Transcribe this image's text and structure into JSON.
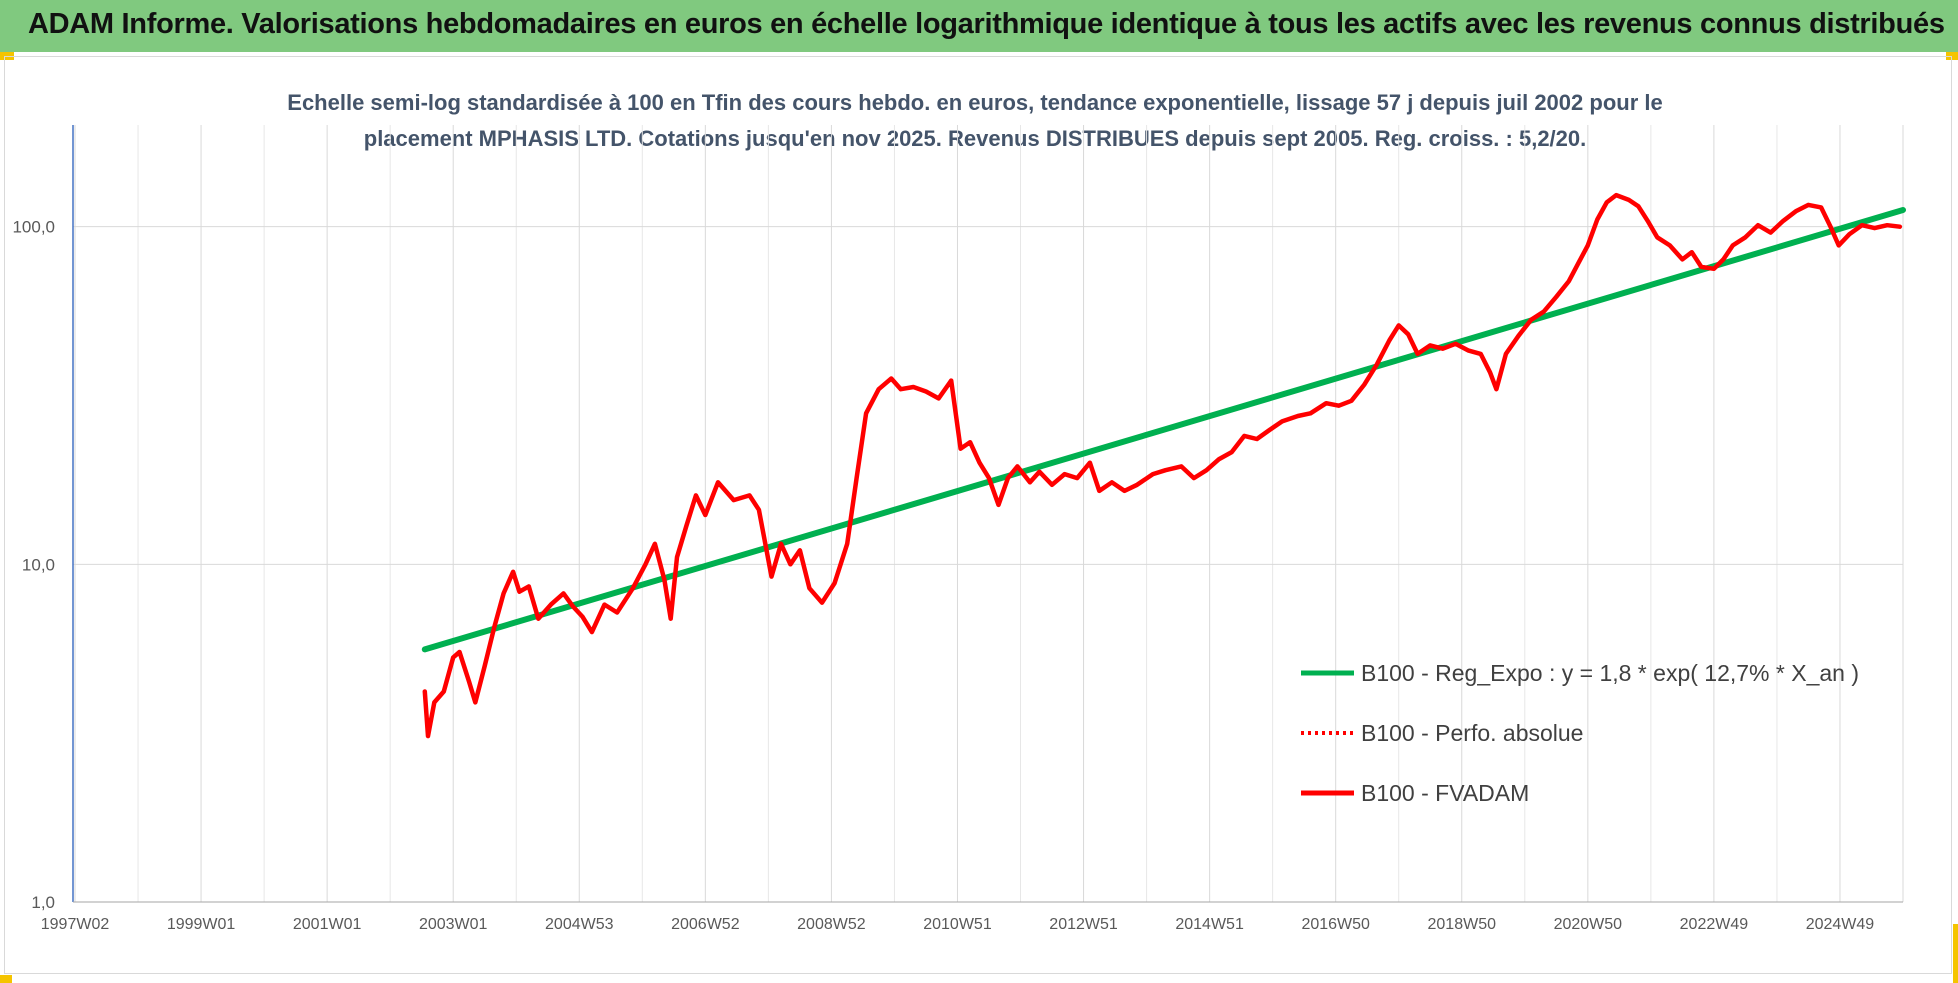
{
  "banner": {
    "title": "ADAM Informe. Valorisations hebdomadaires en euros en échelle logarithmique identique à tous les actifs avec les revenus connus distribués",
    "background": "#80c97f"
  },
  "chart_data": {
    "type": "line",
    "title_lines": [
      "Echelle semi-log standardisée à 100 en Tfin des cours hebdo. en euros, tendance exponentielle, lissage 57 j depuis juil 2002 pour le",
      "placement MPHASIS LTD. Cotations jusqu'en nov 2025. Revenus DISTRIBUES depuis sept 2005. Reg. croiss. : 5,2/20."
    ],
    "y_scale": "log",
    "ylim": [
      1,
      200
    ],
    "y_ticks": [
      {
        "value": 1,
        "label": "1,0"
      },
      {
        "value": 10,
        "label": "10,0"
      },
      {
        "value": 100,
        "label": "100,0"
      }
    ],
    "x_range": [
      1997.0,
      2026.0
    ],
    "x_ticks": [
      {
        "value": 1997.0,
        "label": "1997W02"
      },
      {
        "value": 1999.0,
        "label": "1999W01"
      },
      {
        "value": 2001.0,
        "label": "2001W01"
      },
      {
        "value": 2003.0,
        "label": "2003W01"
      },
      {
        "value": 2005.0,
        "label": "2004W53"
      },
      {
        "value": 2007.0,
        "label": "2006W52"
      },
      {
        "value": 2009.0,
        "label": "2008W52"
      },
      {
        "value": 2011.0,
        "label": "2010W51"
      },
      {
        "value": 2013.0,
        "label": "2012W51"
      },
      {
        "value": 2015.0,
        "label": "2014W51"
      },
      {
        "value": 2017.0,
        "label": "2016W50"
      },
      {
        "value": 2019.0,
        "label": "2018W50"
      },
      {
        "value": 2021.0,
        "label": "2020W50"
      },
      {
        "value": 2023.0,
        "label": "2022W49"
      },
      {
        "value": 2025.0,
        "label": "2024W49"
      }
    ],
    "grid": "vertical-and-horizontal",
    "legend_position": "bottom-right",
    "series": [
      {
        "name": "B100 - Reg_Expo : y = 1,8 * exp( 12,7% * X_an )",
        "color": "#00b050",
        "style": "solid",
        "points": [
          [
            2002.55,
            5.6
          ],
          [
            2026.0,
            112
          ]
        ]
      },
      {
        "name": "B100 - Perfo. absolue",
        "color": "#ff0000",
        "style": "dotted",
        "points": []
      },
      {
        "name": "B100 - FVADAM",
        "color": "#ff0000",
        "style": "solid",
        "points": [
          [
            2002.55,
            4.2
          ],
          [
            2002.6,
            3.1
          ],
          [
            2002.7,
            3.9
          ],
          [
            2002.85,
            4.2
          ],
          [
            2003.0,
            5.3
          ],
          [
            2003.1,
            5.5
          ],
          [
            2003.25,
            4.5
          ],
          [
            2003.35,
            3.9
          ],
          [
            2003.5,
            5.0
          ],
          [
            2003.65,
            6.5
          ],
          [
            2003.8,
            8.2
          ],
          [
            2003.95,
            9.5
          ],
          [
            2004.05,
            8.3
          ],
          [
            2004.2,
            8.6
          ],
          [
            2004.35,
            6.9
          ],
          [
            2004.55,
            7.6
          ],
          [
            2004.75,
            8.2
          ],
          [
            2004.9,
            7.5
          ],
          [
            2005.05,
            7.0
          ],
          [
            2005.2,
            6.3
          ],
          [
            2005.4,
            7.6
          ],
          [
            2005.6,
            7.2
          ],
          [
            2005.85,
            8.5
          ],
          [
            2006.05,
            10.0
          ],
          [
            2006.2,
            11.5
          ],
          [
            2006.35,
            9.0
          ],
          [
            2006.45,
            6.9
          ],
          [
            2006.55,
            10.5
          ],
          [
            2006.7,
            13.0
          ],
          [
            2006.85,
            16.0
          ],
          [
            2007.0,
            14.0
          ],
          [
            2007.2,
            17.5
          ],
          [
            2007.45,
            15.5
          ],
          [
            2007.7,
            16.0
          ],
          [
            2007.85,
            14.5
          ],
          [
            2008.05,
            9.2
          ],
          [
            2008.2,
            11.5
          ],
          [
            2008.35,
            10.0
          ],
          [
            2008.5,
            11.0
          ],
          [
            2008.65,
            8.5
          ],
          [
            2008.85,
            7.7
          ],
          [
            2009.05,
            8.8
          ],
          [
            2009.25,
            11.5
          ],
          [
            2009.4,
            18.0
          ],
          [
            2009.55,
            28.0
          ],
          [
            2009.75,
            33.0
          ],
          [
            2009.95,
            35.5
          ],
          [
            2010.1,
            33.0
          ],
          [
            2010.3,
            33.5
          ],
          [
            2010.5,
            32.5
          ],
          [
            2010.7,
            31.0
          ],
          [
            2010.9,
            35.0
          ],
          [
            2011.05,
            22.0
          ],
          [
            2011.2,
            23.0
          ],
          [
            2011.35,
            20.0
          ],
          [
            2011.5,
            18.0
          ],
          [
            2011.65,
            15.0
          ],
          [
            2011.8,
            18.0
          ],
          [
            2011.95,
            19.5
          ],
          [
            2012.15,
            17.5
          ],
          [
            2012.3,
            18.8
          ],
          [
            2012.5,
            17.2
          ],
          [
            2012.7,
            18.5
          ],
          [
            2012.9,
            18.0
          ],
          [
            2013.1,
            20.0
          ],
          [
            2013.25,
            16.5
          ],
          [
            2013.45,
            17.5
          ],
          [
            2013.65,
            16.5
          ],
          [
            2013.85,
            17.2
          ],
          [
            2014.1,
            18.5
          ],
          [
            2014.3,
            19.0
          ],
          [
            2014.55,
            19.5
          ],
          [
            2014.75,
            18.0
          ],
          [
            2014.95,
            19.0
          ],
          [
            2015.15,
            20.5
          ],
          [
            2015.35,
            21.5
          ],
          [
            2015.55,
            24.0
          ],
          [
            2015.75,
            23.5
          ],
          [
            2015.95,
            25.0
          ],
          [
            2016.15,
            26.5
          ],
          [
            2016.4,
            27.5
          ],
          [
            2016.6,
            28.0
          ],
          [
            2016.85,
            30.0
          ],
          [
            2017.05,
            29.5
          ],
          [
            2017.25,
            30.5
          ],
          [
            2017.45,
            34.0
          ],
          [
            2017.65,
            39.0
          ],
          [
            2017.85,
            46.0
          ],
          [
            2018.0,
            51.0
          ],
          [
            2018.15,
            48.0
          ],
          [
            2018.3,
            42.0
          ],
          [
            2018.5,
            44.5
          ],
          [
            2018.7,
            43.5
          ],
          [
            2018.9,
            45.0
          ],
          [
            2019.1,
            43.0
          ],
          [
            2019.3,
            42.0
          ],
          [
            2019.45,
            37.0
          ],
          [
            2019.55,
            33.0
          ],
          [
            2019.7,
            42.0
          ],
          [
            2019.9,
            47.5
          ],
          [
            2020.1,
            53.0
          ],
          [
            2020.3,
            56.0
          ],
          [
            2020.5,
            62.0
          ],
          [
            2020.7,
            69.0
          ],
          [
            2020.85,
            78.0
          ],
          [
            2021.0,
            88.0
          ],
          [
            2021.15,
            105.0
          ],
          [
            2021.3,
            118.0
          ],
          [
            2021.45,
            124.0
          ],
          [
            2021.65,
            120.0
          ],
          [
            2021.8,
            115.0
          ],
          [
            2021.95,
            104.0
          ],
          [
            2022.1,
            93.0
          ],
          [
            2022.3,
            88.0
          ],
          [
            2022.5,
            80.0
          ],
          [
            2022.65,
            84.0
          ],
          [
            2022.8,
            76.0
          ],
          [
            2023.0,
            75.0
          ],
          [
            2023.15,
            80.0
          ],
          [
            2023.3,
            88.0
          ],
          [
            2023.5,
            93.0
          ],
          [
            2023.7,
            101.0
          ],
          [
            2023.9,
            96.0
          ],
          [
            2024.1,
            104.0
          ],
          [
            2024.3,
            111.0
          ],
          [
            2024.5,
            116.0
          ],
          [
            2024.7,
            114.0
          ],
          [
            2024.85,
            100.0
          ],
          [
            2024.98,
            88.0
          ],
          [
            2025.15,
            95.0
          ],
          [
            2025.35,
            101.0
          ],
          [
            2025.55,
            99.0
          ],
          [
            2025.75,
            101.0
          ],
          [
            2025.95,
            100.0
          ]
        ]
      }
    ]
  }
}
